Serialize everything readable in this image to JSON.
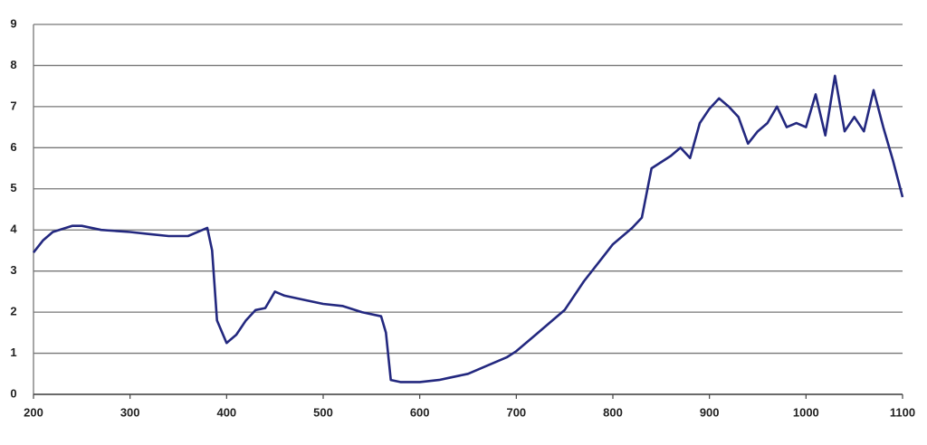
{
  "chart_data": {
    "type": "line",
    "x": [
      200,
      210,
      220,
      240,
      250,
      270,
      300,
      320,
      340,
      360,
      375,
      380,
      385,
      390,
      400,
      410,
      420,
      430,
      440,
      450,
      460,
      480,
      500,
      520,
      540,
      560,
      565,
      570,
      580,
      600,
      620,
      630,
      650,
      670,
      690,
      700,
      720,
      740,
      750,
      770,
      790,
      800,
      820,
      830,
      840,
      860,
      870,
      880,
      890,
      900,
      910,
      920,
      930,
      940,
      950,
      960,
      970,
      980,
      990,
      1000,
      1010,
      1020,
      1030,
      1040,
      1050,
      1060,
      1070,
      1080,
      1090,
      1100
    ],
    "series": [
      {
        "color": "#23287f",
        "values": [
          3.45,
          3.75,
          3.95,
          4.1,
          4.1,
          4.0,
          3.95,
          3.9,
          3.85,
          3.85,
          4.0,
          4.05,
          3.5,
          1.8,
          1.25,
          1.45,
          1.8,
          2.05,
          2.1,
          2.5,
          2.4,
          2.3,
          2.2,
          2.15,
          2.0,
          1.9,
          1.5,
          0.35,
          0.3,
          0.3,
          0.35,
          0.4,
          0.5,
          0.7,
          0.9,
          1.05,
          1.45,
          1.85,
          2.05,
          2.75,
          3.35,
          3.65,
          4.05,
          4.3,
          5.5,
          5.8,
          6.0,
          5.75,
          6.6,
          6.95,
          7.2,
          7.0,
          6.75,
          6.1,
          6.4,
          6.6,
          7.0,
          6.5,
          6.6,
          6.5,
          7.3,
          6.3,
          7.75,
          6.4,
          6.75,
          6.4,
          7.4,
          6.5,
          5.7,
          4.8
        ]
      }
    ],
    "xlim": [
      200,
      1100
    ],
    "xticks": [
      200,
      300,
      400,
      500,
      600,
      700,
      800,
      900,
      1000,
      1100
    ],
    "ylim": [
      0,
      9
    ],
    "yticks": [
      0,
      1,
      2,
      3,
      4,
      5,
      6,
      7,
      8,
      9
    ],
    "grid": true
  }
}
